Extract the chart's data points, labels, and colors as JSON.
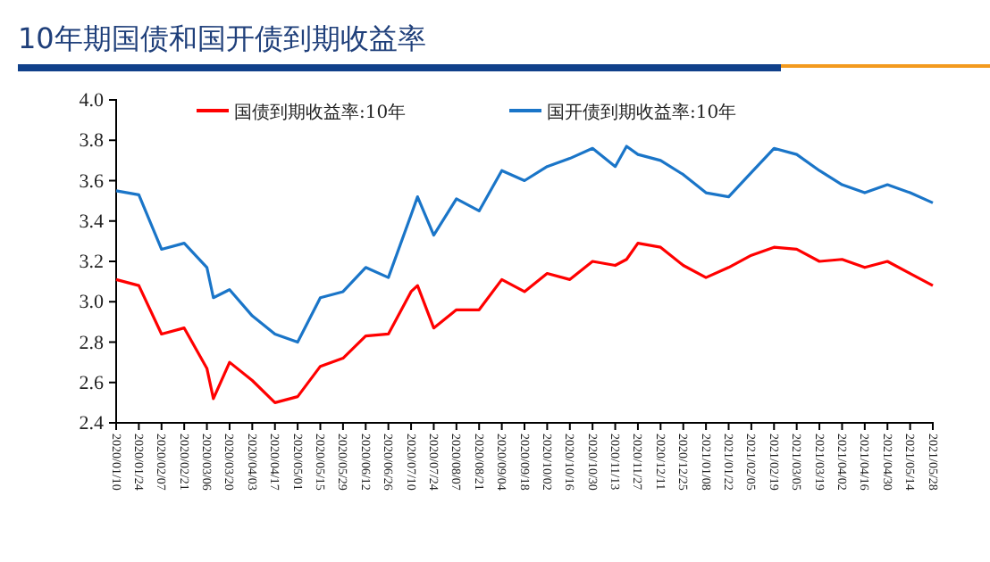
{
  "chart_data": {
    "type": "line",
    "title": "10年期国债和国开债到期收益率",
    "x": [
      "2020-01-10",
      "2020-01-24",
      "2020-02-07",
      "2020-02-21",
      "2020-03-06",
      "2020-03-10",
      "2020-03-20",
      "2020-04-03",
      "2020-04-17",
      "2020-05-01",
      "2020-05-15",
      "2020-05-29",
      "2020-06-12",
      "2020-06-26",
      "2020-07-10",
      "2020-07-14",
      "2020-07-24",
      "2020-08-07",
      "2020-08-21",
      "2020-09-04",
      "2020-09-18",
      "2020-10-02",
      "2020-10-16",
      "2020-10-30",
      "2020-11-13",
      "2020-11-20",
      "2020-11-27",
      "2020-12-11",
      "2020-12-25",
      "2021-01-08",
      "2021-01-22",
      "2021-02-05",
      "2021-02-19",
      "2021-03-05",
      "2021-03-19",
      "2021-04-02",
      "2021-04-16",
      "2021-04-30",
      "2021-05-14",
      "2021-05-28"
    ],
    "series": [
      {
        "name": "国债到期收益率:10年",
        "color": "#ff0000",
        "values": [
          3.11,
          3.08,
          2.84,
          2.87,
          2.67,
          2.52,
          2.7,
          2.61,
          2.5,
          2.53,
          2.68,
          2.72,
          2.83,
          2.84,
          3.05,
          3.08,
          2.87,
          2.96,
          2.96,
          3.11,
          3.05,
          3.14,
          3.11,
          3.2,
          3.18,
          3.21,
          3.29,
          3.27,
          3.18,
          3.12,
          3.17,
          3.23,
          3.27,
          3.26,
          3.2,
          3.21,
          3.17,
          3.2,
          3.14,
          3.08
        ]
      },
      {
        "name": "国开债到期收益率:10年",
        "color": "#1a75c8",
        "values": [
          3.55,
          3.53,
          3.26,
          3.29,
          3.17,
          3.02,
          3.06,
          2.93,
          2.84,
          2.8,
          3.02,
          3.05,
          3.17,
          3.12,
          3.43,
          3.52,
          3.33,
          3.51,
          3.45,
          3.65,
          3.6,
          3.67,
          3.71,
          3.76,
          3.67,
          3.77,
          3.73,
          3.7,
          3.63,
          3.54,
          3.52,
          3.64,
          3.76,
          3.73,
          3.65,
          3.58,
          3.54,
          3.58,
          3.54,
          3.49
        ]
      }
    ],
    "xlim": [
      "2020-01-10",
      "2021-05-28"
    ],
    "xticks": [
      {
        "value": "2020-01-10",
        "label": "2020/01/10"
      },
      {
        "value": "2020-01-24",
        "label": "2020/01/24"
      },
      {
        "value": "2020-02-07",
        "label": "2020/02/07"
      },
      {
        "value": "2020-02-21",
        "label": "2020/02/21"
      },
      {
        "value": "2020-03-06",
        "label": "2020/03/06"
      },
      {
        "value": "2020-03-20",
        "label": "2020/03/20"
      },
      {
        "value": "2020-04-03",
        "label": "2020/04/03"
      },
      {
        "value": "2020-04-17",
        "label": "2020/04/17"
      },
      {
        "value": "2020-05-01",
        "label": "2020/05/01"
      },
      {
        "value": "2020-05-15",
        "label": "2020/05/15"
      },
      {
        "value": "2020-05-29",
        "label": "2020/05/29"
      },
      {
        "value": "2020-06-12",
        "label": "2020/06/12"
      },
      {
        "value": "2020-06-26",
        "label": "2020/06/26"
      },
      {
        "value": "2020-07-10",
        "label": "2020/07/10"
      },
      {
        "value": "2020-07-24",
        "label": "2020/07/24"
      },
      {
        "value": "2020-08-07",
        "label": "2020/08/07"
      },
      {
        "value": "2020-08-21",
        "label": "2020/08/21"
      },
      {
        "value": "2020-09-04",
        "label": "2020/09/04"
      },
      {
        "value": "2020-09-18",
        "label": "2020/09/18"
      },
      {
        "value": "2020-10-02",
        "label": "2020/10/02"
      },
      {
        "value": "2020-10-16",
        "label": "2020/10/16"
      },
      {
        "value": "2020-10-30",
        "label": "2020/10/30"
      },
      {
        "value": "2020-11-13",
        "label": "2020/11/13"
      },
      {
        "value": "2020-11-27",
        "label": "2020/11/27"
      },
      {
        "value": "2020-12-11",
        "label": "2020/12/11"
      },
      {
        "value": "2020-12-25",
        "label": "2020/12/25"
      },
      {
        "value": "2021-01-08",
        "label": "2021/01/08"
      },
      {
        "value": "2021-01-22",
        "label": "2021/01/22"
      },
      {
        "value": "2021-02-05",
        "label": "2021/02/05"
      },
      {
        "value": "2021-02-19",
        "label": "2021/02/19"
      },
      {
        "value": "2021-03-05",
        "label": "2021/03/05"
      },
      {
        "value": "2021-03-19",
        "label": "2021/03/19"
      },
      {
        "value": "2021-04-02",
        "label": "2021/04/02"
      },
      {
        "value": "2021-04-16",
        "label": "2021/04/16"
      },
      {
        "value": "2021-04-30",
        "label": "2021/04/30"
      },
      {
        "value": "2021-05-14",
        "label": "2021/05/14"
      },
      {
        "value": "2021-05-28",
        "label": "2021/05/28"
      }
    ],
    "ylim": [
      2.4,
      4.0
    ],
    "yticks": [
      {
        "value": 2.4,
        "label": "2.4"
      },
      {
        "value": 2.6,
        "label": "2.6"
      },
      {
        "value": 2.8,
        "label": "2.8"
      },
      {
        "value": 3.0,
        "label": "3.0"
      },
      {
        "value": 3.2,
        "label": "3.2"
      },
      {
        "value": 3.4,
        "label": "3.4"
      },
      {
        "value": 3.6,
        "label": "3.6"
      },
      {
        "value": 3.8,
        "label": "3.8"
      },
      {
        "value": 4.0,
        "label": "4.0"
      }
    ],
    "grid": false,
    "legend": "top",
    "marker": "none",
    "line_style": "solid"
  }
}
